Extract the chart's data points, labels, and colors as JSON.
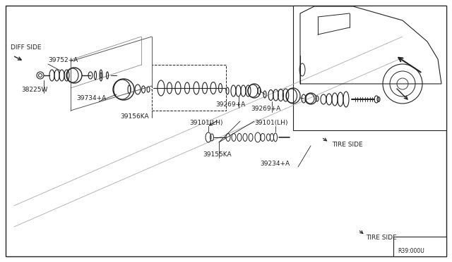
{
  "bg_color": "#f5f5f5",
  "line_color": "#222222",
  "fig_width": 6.4,
  "fig_height": 3.72,
  "dpi": 100,
  "labels": {
    "diff_side": "DIFF SIDE",
    "tire_side_top": "TIRE SIDE",
    "tire_side_bottom": "TIRE SIDE",
    "part_39752": "39752+A",
    "part_38225w": "38225W",
    "part_39734": "39734+A",
    "part_39156ka": "39156KA",
    "part_39101lh_1": "39101(LH)",
    "part_39101lh_2": "39101(LH)",
    "part_39269_1": "39269+A",
    "part_39269_2": "39269+A",
    "part_39155ka": "39155KA",
    "part_39234": "39234+A",
    "diagram_num": "R39:000U"
  }
}
